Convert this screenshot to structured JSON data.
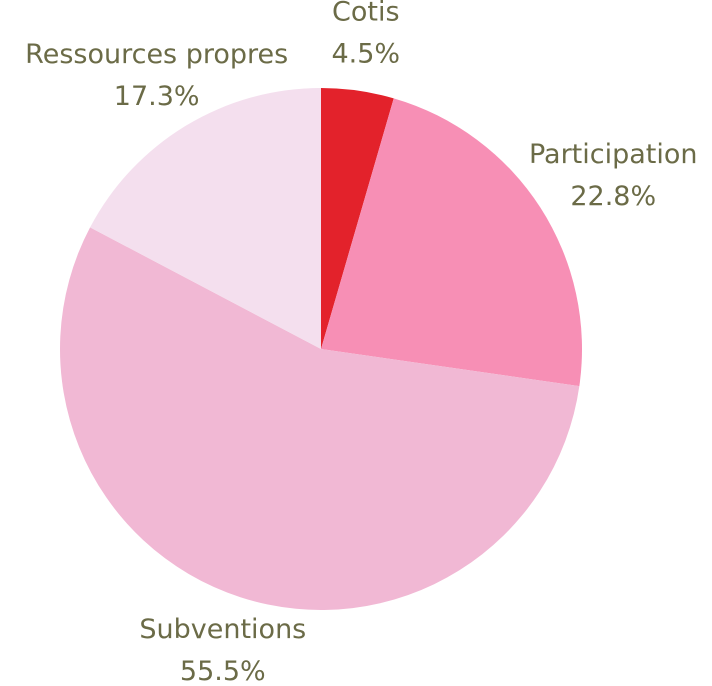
{
  "chart_data": {
    "type": "pie",
    "categories": [
      "Cotis",
      "Participation",
      "Subventions",
      "Ressources propres"
    ],
    "values": [
      4.5,
      22.8,
      55.5,
      17.3
    ],
    "value_labels": [
      "4.5%",
      "22.8%",
      "55.5%",
      "17.3%"
    ],
    "colors": [
      "#e3222b",
      "#f78fb5",
      "#f1b8d4",
      "#f4dfee"
    ]
  }
}
